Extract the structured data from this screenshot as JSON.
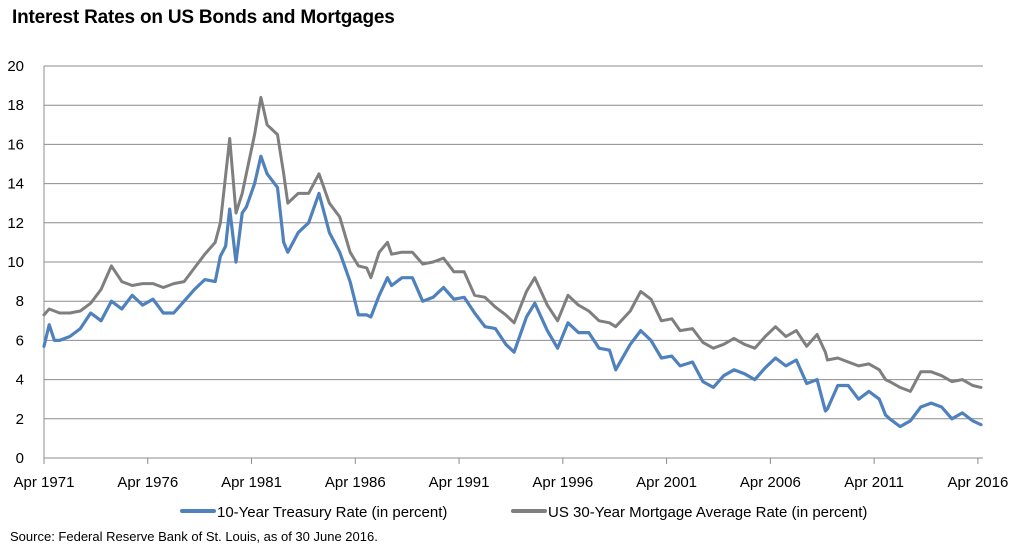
{
  "chart_data": {
    "type": "line",
    "title": "Interest Rates on US Bonds and Mortgages",
    "source": "Source: Federal Reserve Bank of St. Louis, as of 30 June 2016.",
    "xlabel": "",
    "ylabel": "",
    "xlim": [
      1971.25,
      2016.4
    ],
    "ylim": [
      0,
      20
    ],
    "y_ticks": [
      0,
      2,
      4,
      6,
      8,
      10,
      12,
      14,
      16,
      18,
      20
    ],
    "x_ticks": [
      {
        "x": 1971.25,
        "label": "Apr 1971"
      },
      {
        "x": 1976.25,
        "label": "Apr 1976"
      },
      {
        "x": 1981.25,
        "label": "Apr 1981"
      },
      {
        "x": 1986.25,
        "label": "Apr 1986"
      },
      {
        "x": 1991.25,
        "label": "Apr 1991"
      },
      {
        "x": 1996.25,
        "label": "Apr 1996"
      },
      {
        "x": 2001.25,
        "label": "Apr 2001"
      },
      {
        "x": 2006.25,
        "label": "Apr 2006"
      },
      {
        "x": 2011.25,
        "label": "Apr 2011"
      },
      {
        "x": 2016.25,
        "label": "Apr 2016"
      }
    ],
    "grid": true,
    "legend_position": "bottom",
    "series": [
      {
        "name": "10-Year Treasury Rate (in percent)",
        "color": "#4f81bd",
        "x": [
          1971.25,
          1971.5,
          1971.75,
          1972.0,
          1972.5,
          1973.0,
          1973.5,
          1974.0,
          1974.5,
          1975.0,
          1975.5,
          1976.0,
          1976.5,
          1977.0,
          1977.5,
          1978.0,
          1978.5,
          1979.0,
          1979.5,
          1979.75,
          1980.0,
          1980.2,
          1980.5,
          1980.8,
          1981.0,
          1981.4,
          1981.7,
          1982.0,
          1982.5,
          1982.8,
          1983.0,
          1983.5,
          1984.0,
          1984.5,
          1985.0,
          1985.5,
          1986.0,
          1986.4,
          1986.8,
          1987.0,
          1987.4,
          1987.8,
          1988.0,
          1988.5,
          1989.0,
          1989.5,
          1990.0,
          1990.5,
          1991.0,
          1991.5,
          1992.0,
          1992.5,
          1993.0,
          1993.5,
          1993.9,
          1994.5,
          1994.9,
          1995.5,
          1996.0,
          1996.5,
          1997.0,
          1997.5,
          1998.0,
          1998.5,
          1998.8,
          1999.5,
          2000.0,
          2000.5,
          2001.0,
          2001.5,
          2001.9,
          2002.5,
          2003.0,
          2003.5,
          2004.0,
          2004.5,
          2005.0,
          2005.5,
          2006.0,
          2006.5,
          2007.0,
          2007.5,
          2008.0,
          2008.5,
          2008.9,
          2009.0,
          2009.5,
          2010.0,
          2010.5,
          2011.0,
          2011.5,
          2011.8,
          2012.0,
          2012.5,
          2013.0,
          2013.5,
          2014.0,
          2014.5,
          2015.0,
          2015.5,
          2016.0,
          2016.4
        ],
        "values": [
          5.7,
          6.8,
          6.0,
          6.0,
          6.2,
          6.6,
          7.4,
          7.0,
          8.0,
          7.6,
          8.3,
          7.8,
          8.1,
          7.4,
          7.4,
          8.0,
          8.6,
          9.1,
          9.0,
          10.3,
          10.8,
          12.7,
          10.0,
          12.5,
          12.8,
          14.0,
          15.4,
          14.5,
          13.8,
          11.0,
          10.5,
          11.5,
          12.0,
          13.5,
          11.5,
          10.5,
          9.0,
          7.3,
          7.3,
          7.2,
          8.3,
          9.2,
          8.8,
          9.2,
          9.2,
          8.0,
          8.2,
          8.7,
          8.1,
          8.2,
          7.4,
          6.7,
          6.6,
          5.8,
          5.4,
          7.2,
          7.9,
          6.5,
          5.6,
          6.9,
          6.4,
          6.4,
          5.6,
          5.5,
          4.5,
          5.8,
          6.5,
          6.0,
          5.1,
          5.2,
          4.7,
          4.9,
          3.9,
          3.6,
          4.2,
          4.5,
          4.3,
          4.0,
          4.6,
          5.1,
          4.7,
          5.0,
          3.8,
          4.0,
          2.4,
          2.5,
          3.7,
          3.7,
          3.0,
          3.4,
          3.0,
          2.2,
          2.0,
          1.6,
          1.9,
          2.6,
          2.8,
          2.6,
          2.0,
          2.3,
          1.9,
          1.7
        ]
      },
      {
        "name": "US 30-Year Mortgage Average Rate (in percent)",
        "color": "#7f7f7f",
        "x": [
          1971.25,
          1971.5,
          1972.0,
          1972.5,
          1973.0,
          1973.5,
          1974.0,
          1974.5,
          1975.0,
          1975.5,
          1976.0,
          1976.5,
          1977.0,
          1977.5,
          1978.0,
          1978.5,
          1979.0,
          1979.5,
          1979.75,
          1980.2,
          1980.5,
          1980.8,
          1981.0,
          1981.4,
          1981.7,
          1982.0,
          1982.5,
          1982.8,
          1983.0,
          1983.5,
          1984.0,
          1984.5,
          1985.0,
          1985.5,
          1986.0,
          1986.4,
          1986.8,
          1987.0,
          1987.4,
          1987.8,
          1988.0,
          1988.5,
          1989.0,
          1989.5,
          1990.0,
          1990.5,
          1991.0,
          1991.5,
          1992.0,
          1992.5,
          1993.0,
          1993.5,
          1993.9,
          1994.5,
          1994.9,
          1995.5,
          1996.0,
          1996.5,
          1997.0,
          1997.5,
          1998.0,
          1998.5,
          1998.8,
          1999.5,
          2000.0,
          2000.5,
          2001.0,
          2001.5,
          2001.9,
          2002.5,
          2003.0,
          2003.5,
          2004.0,
          2004.5,
          2005.0,
          2005.5,
          2006.0,
          2006.5,
          2007.0,
          2007.5,
          2008.0,
          2008.5,
          2008.9,
          2009.0,
          2009.5,
          2010.0,
          2010.5,
          2011.0,
          2011.5,
          2011.8,
          2012.0,
          2012.5,
          2013.0,
          2013.5,
          2014.0,
          2014.5,
          2015.0,
          2015.5,
          2016.0,
          2016.4
        ],
        "values": [
          7.3,
          7.6,
          7.4,
          7.4,
          7.5,
          7.9,
          8.6,
          9.8,
          9.0,
          8.8,
          8.9,
          8.9,
          8.7,
          8.9,
          9.0,
          9.7,
          10.4,
          11.0,
          12.0,
          16.3,
          12.5,
          13.5,
          14.5,
          16.5,
          18.4,
          17.0,
          16.5,
          14.5,
          13.0,
          13.5,
          13.5,
          14.5,
          13.0,
          12.3,
          10.5,
          9.8,
          9.7,
          9.2,
          10.5,
          11.0,
          10.4,
          10.5,
          10.5,
          9.9,
          10.0,
          10.2,
          9.5,
          9.5,
          8.3,
          8.2,
          7.7,
          7.3,
          6.9,
          8.5,
          9.2,
          7.8,
          7.0,
          8.3,
          7.8,
          7.5,
          7.0,
          6.9,
          6.7,
          7.5,
          8.5,
          8.1,
          7.0,
          7.1,
          6.5,
          6.6,
          5.9,
          5.6,
          5.8,
          6.1,
          5.8,
          5.6,
          6.2,
          6.7,
          6.2,
          6.5,
          5.7,
          6.3,
          5.4,
          5.0,
          5.1,
          4.9,
          4.7,
          4.8,
          4.5,
          4.0,
          3.9,
          3.6,
          3.4,
          4.4,
          4.4,
          4.2,
          3.9,
          4.0,
          3.7,
          3.6
        ]
      }
    ]
  }
}
